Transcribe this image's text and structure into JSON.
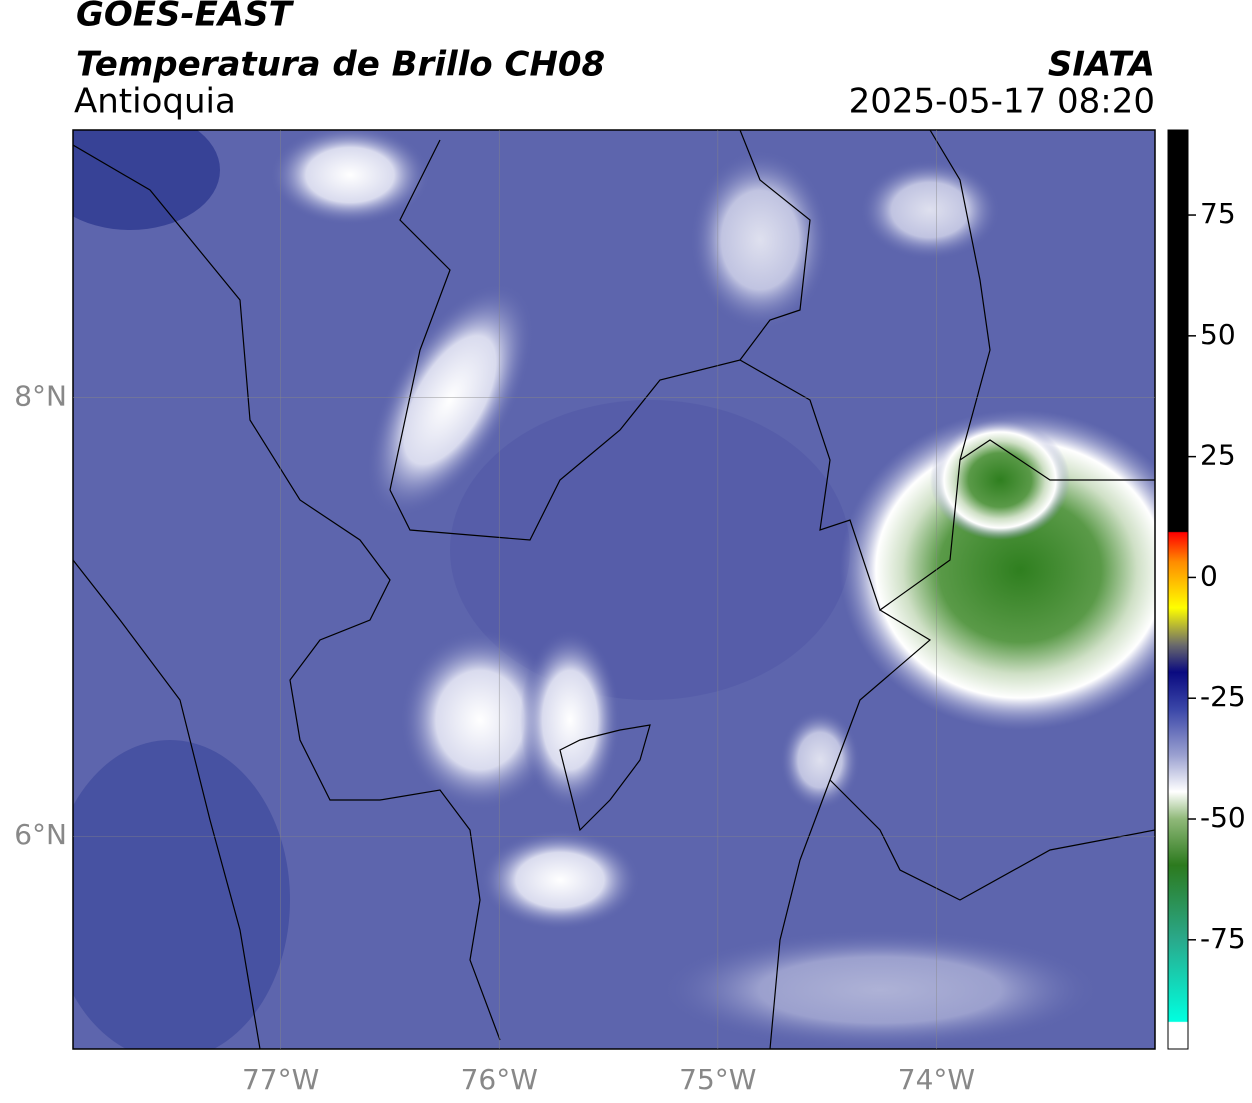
{
  "header": {
    "title": "GOES-EAST",
    "subtitle": "Temperatura de Brillo CH08",
    "region": "Antioquia",
    "source": "SIATA",
    "datetime": "2025-05-17 08:20"
  },
  "map": {
    "xlim": [
      -77.95,
      -73.0
    ],
    "ylim": [
      5.03,
      9.22
    ],
    "xticks": [
      {
        "value": -77,
        "label": "77°W"
      },
      {
        "value": -76,
        "label": "76°W"
      },
      {
        "value": -75,
        "label": "75°W"
      },
      {
        "value": -74,
        "label": "74°W"
      }
    ],
    "yticks": [
      {
        "value": 6,
        "label": "6°N"
      },
      {
        "value": 8,
        "label": "8°N"
      }
    ]
  },
  "colorbar": {
    "ylim": [
      -97.6,
      92.6
    ],
    "yticks": [
      75,
      50,
      25,
      0,
      -25,
      -50,
      -75
    ]
  }
}
